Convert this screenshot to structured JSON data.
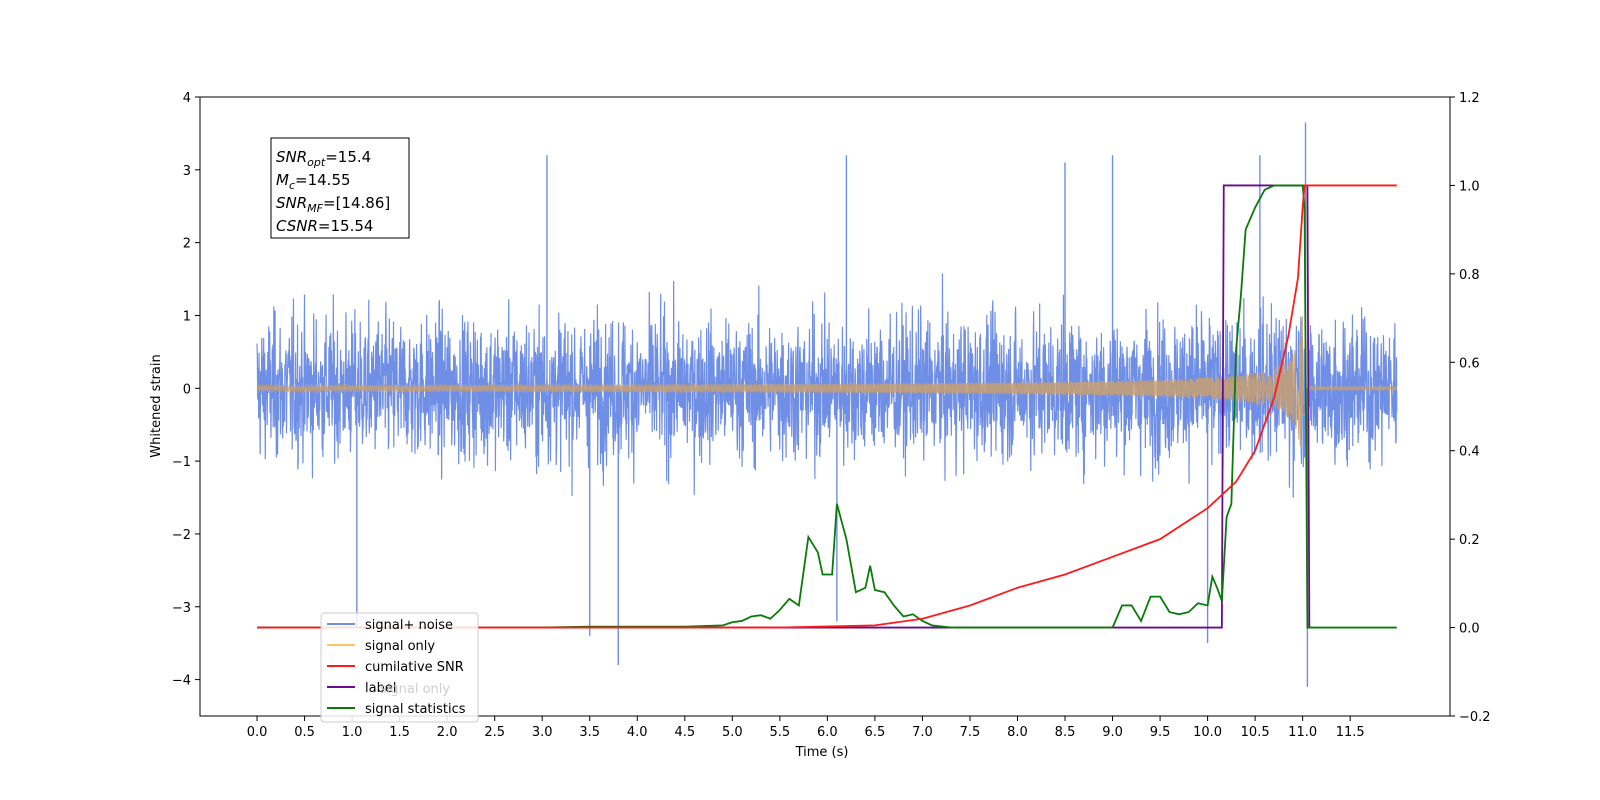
{
  "chart_data": {
    "type": "line",
    "xlabel": "Time (s)",
    "ylabel": "Whitened strain",
    "xlim": [
      -0.6,
      12.55
    ],
    "ylim": [
      -4.5,
      4.0
    ],
    "y2lim": [
      -0.2,
      1.2
    ],
    "x_ticks": [
      "0.0",
      "0.5",
      "1.0",
      "1.5",
      "2.0",
      "2.5",
      "3.0",
      "3.5",
      "4.0",
      "4.5",
      "5.0",
      "5.5",
      "6.0",
      "6.5",
      "7.0",
      "7.5",
      "8.0",
      "8.5",
      "9.0",
      "9.5",
      "10.0",
      "10.5",
      "11.0",
      "11.5"
    ],
    "y_ticks": [
      "4",
      "3",
      "2",
      "1",
      "0",
      "−1",
      "−2",
      "−3",
      "−4"
    ],
    "y2_ticks": [
      "1.2",
      "1.0",
      "0.8",
      "0.6",
      "0.4",
      "0.2",
      "0.0",
      "−0.2"
    ],
    "annotation": {
      "lines": [
        {
          "name": "SNR",
          "sub": "opt",
          "value": "=15.4"
        },
        {
          "name": "M",
          "sub": "c",
          "value": "=14.55"
        },
        {
          "name": "SNR",
          "sub": "MF",
          "value": "=[14.86]"
        },
        {
          "name": "CSNR",
          "sub": "",
          "value": "=15.54"
        }
      ]
    },
    "legend_position": "lower-left",
    "legend_entries": [
      "signal+ noise",
      "signal only",
      "cumilative SNR",
      "label",
      "signal statistics"
    ],
    "legend_overlap_text": "signal only",
    "series": [
      {
        "name": "signal+ noise",
        "axis": "left",
        "color": "#6f8ee6",
        "noise_band": {
          "x_start": 0.0,
          "x_end": 11.99,
          "typical_range": [
            -1.5,
            2.0
          ],
          "peaks": [
            [
              1.05,
              -3.3
            ],
            [
              3.05,
              3.2
            ],
            [
              3.5,
              -3.4
            ],
            [
              3.8,
              -3.8
            ],
            [
              6.1,
              -3.2
            ],
            [
              6.2,
              3.2
            ],
            [
              8.5,
              3.1
            ],
            [
              9.0,
              3.2
            ],
            [
              10.0,
              -3.5
            ],
            [
              10.55,
              3.2
            ],
            [
              11.03,
              3.65
            ],
            [
              11.05,
              -4.1
            ]
          ]
        }
      },
      {
        "name": "signal only",
        "axis": "left",
        "color": "#c8a070",
        "chirp": {
          "x_start": 0.0,
          "x_merger": 11.0,
          "x_end": 11.99,
          "peak_amplitude": 1.3
        }
      },
      {
        "name": "cumilative SNR",
        "axis": "right",
        "color": "#ff1a1a",
        "x": [
          0.0,
          5.5,
          6.5,
          7.0,
          7.5,
          8.0,
          8.5,
          9.0,
          9.5,
          10.0,
          10.3,
          10.5,
          10.7,
          10.85,
          10.95,
          11.0,
          11.02,
          11.04,
          11.1,
          11.99
        ],
        "y": [
          0.0,
          0.0,
          0.005,
          0.02,
          0.05,
          0.09,
          0.12,
          0.16,
          0.2,
          0.27,
          0.33,
          0.4,
          0.52,
          0.66,
          0.79,
          0.95,
          1.0,
          1.0,
          1.0,
          1.0
        ]
      },
      {
        "name": "label",
        "axis": "right",
        "color": "#6a0a8c",
        "x": [
          0.0,
          10.15,
          10.17,
          10.5,
          11.0,
          11.05,
          11.07,
          11.1
        ],
        "y": [
          0.0,
          0.0,
          1.0,
          1.0,
          1.0,
          1.0,
          0.0,
          0.0
        ]
      },
      {
        "name": "signal statistics",
        "axis": "right",
        "color": "#0a7a0a",
        "x": [
          0.0,
          3.0,
          3.5,
          4.5,
          4.9,
          5.0,
          5.1,
          5.2,
          5.3,
          5.4,
          5.5,
          5.6,
          5.7,
          5.8,
          5.9,
          5.95,
          6.0,
          6.05,
          6.1,
          6.2,
          6.3,
          6.4,
          6.45,
          6.5,
          6.6,
          6.7,
          6.8,
          6.9,
          7.0,
          7.1,
          7.3,
          9.0,
          9.1,
          9.2,
          9.3,
          9.4,
          9.5,
          9.6,
          9.7,
          9.8,
          9.9,
          10.0,
          10.05,
          10.1,
          10.15,
          10.2,
          10.25,
          10.3,
          10.35,
          10.4,
          10.5,
          10.6,
          10.7,
          11.0,
          11.02,
          11.05,
          11.1,
          11.99
        ],
        "y": [
          0.0,
          0.0,
          0.002,
          0.002,
          0.005,
          0.012,
          0.015,
          0.025,
          0.028,
          0.02,
          0.04,
          0.065,
          0.05,
          0.205,
          0.17,
          0.12,
          0.12,
          0.12,
          0.28,
          0.2,
          0.08,
          0.09,
          0.14,
          0.085,
          0.08,
          0.05,
          0.025,
          0.03,
          0.015,
          0.005,
          0.0,
          0.0,
          0.05,
          0.05,
          0.015,
          0.07,
          0.07,
          0.035,
          0.03,
          0.035,
          0.055,
          0.05,
          0.115,
          0.09,
          0.06,
          0.25,
          0.28,
          0.63,
          0.75,
          0.9,
          0.95,
          0.99,
          1.0,
          1.0,
          0.95,
          0.0,
          0.0,
          0.0
        ]
      }
    ]
  }
}
